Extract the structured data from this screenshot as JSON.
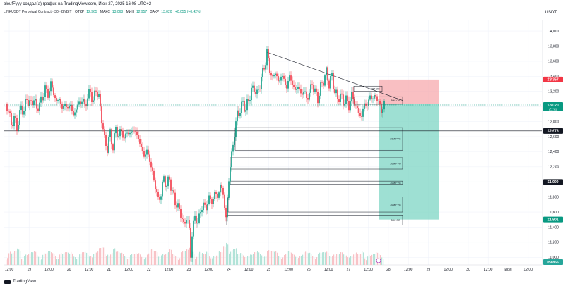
{
  "header": {
    "title": "bloufFyyy создал(а) график на TradingView.com, Июн 27, 2025 16:08 UTC+2"
  },
  "legend": {
    "symbol": "LINKUSDT Perpetual Contract · 30 · BYBIT",
    "open_label": "ОТКР",
    "open": "12,965",
    "high_label": "МАКС",
    "high": "13,068",
    "low_label": "МИН",
    "low": "12,957",
    "close_label": "ЗАКР",
    "close": "13,020",
    "change": "+0,055 (+0,42%)"
  },
  "currency": "USDT",
  "brand": {
    "name": "TradingView"
  },
  "colors": {
    "up": "#089981",
    "down": "#f23645",
    "grid": "#f0f3fa",
    "short_zone": "#f7a9ae",
    "long_zone": "#7ed6c4",
    "last_price": "#089981"
  },
  "chart_data": {
    "type": "candlestick",
    "y_axis": {
      "min": 10.9,
      "max": 14.15,
      "ticks": [
        "14,000",
        "13,800",
        "13,600",
        "13,400",
        "13,200",
        "13,000",
        "12,800",
        "12,600",
        "12,400",
        "12,200",
        "12,000",
        "11,800",
        "11,600",
        "11,400",
        "11,200",
        "11,000"
      ],
      "tick_values": [
        14.0,
        13.8,
        13.6,
        13.4,
        13.2,
        13.0,
        12.8,
        12.6,
        12.4,
        12.2,
        12.0,
        11.8,
        11.6,
        11.4,
        11.2,
        11.0
      ]
    },
    "x_axis": {
      "labels": [
        "12:00",
        "19",
        "12:00",
        "20",
        "12:00",
        "21",
        "12:00",
        "22",
        "12:00",
        "23",
        "12:00",
        "24",
        "12:00",
        "25",
        "12:00",
        "26",
        "12:00",
        "27",
        "12:00",
        "28",
        "12:00",
        "29",
        "12:00",
        "30",
        "12:00",
        "Июл",
        "12:00"
      ]
    },
    "price_series": [
      [
        0,
        13.03
      ],
      [
        4,
        12.95
      ],
      [
        8,
        12.76
      ],
      [
        12,
        12.85
      ],
      [
        16,
        12.72
      ],
      [
        22,
        12.98
      ],
      [
        26,
        12.95
      ],
      [
        30,
        13.1
      ],
      [
        36,
        13.02
      ],
      [
        40,
        13.12
      ],
      [
        44,
        12.95
      ],
      [
        48,
        13.05
      ],
      [
        52,
        13.1
      ],
      [
        56,
        13.25
      ],
      [
        60,
        13.15
      ],
      [
        64,
        13.3
      ],
      [
        68,
        13.18
      ],
      [
        72,
        13.05
      ],
      [
        76,
        13.12
      ],
      [
        80,
        12.95
      ],
      [
        84,
        13.05
      ],
      [
        88,
        12.95
      ],
      [
        92,
        13.05
      ],
      [
        96,
        12.85
      ],
      [
        100,
        13.0
      ],
      [
        104,
        13.02
      ],
      [
        108,
        13.1
      ],
      [
        112,
        13.0
      ],
      [
        116,
        13.12
      ],
      [
        120,
        13.2
      ],
      [
        124,
        13.05
      ],
      [
        128,
        13.25
      ],
      [
        132,
        13.1
      ],
      [
        136,
        12.85
      ],
      [
        140,
        12.55
      ],
      [
        144,
        12.45
      ],
      [
        148,
        12.65
      ],
      [
        152,
        12.45
      ],
      [
        156,
        12.72
      ],
      [
        160,
        12.6
      ],
      [
        164,
        12.7
      ],
      [
        168,
        12.55
      ],
      [
        172,
        12.68
      ],
      [
        176,
        12.62
      ],
      [
        180,
        12.7
      ],
      [
        184,
        12.65
      ],
      [
        188,
        12.58
      ],
      [
        192,
        12.45
      ],
      [
        196,
        12.35
      ],
      [
        200,
        12.4
      ],
      [
        204,
        12.3
      ],
      [
        208,
        12.1
      ],
      [
        212,
        11.95
      ],
      [
        216,
        11.75
      ],
      [
        220,
        11.85
      ],
      [
        224,
        12.05
      ],
      [
        228,
        11.95
      ],
      [
        232,
        12.05
      ],
      [
        236,
        11.85
      ],
      [
        240,
        11.75
      ],
      [
        244,
        11.65
      ],
      [
        248,
        11.6
      ],
      [
        252,
        11.4
      ],
      [
        256,
        11.55
      ],
      [
        260,
        11.35
      ],
      [
        262,
        11.05
      ],
      [
        264,
        11.3
      ],
      [
        268,
        11.55
      ],
      [
        272,
        11.45
      ],
      [
        276,
        11.62
      ],
      [
        280,
        11.7
      ],
      [
        284,
        11.65
      ],
      [
        288,
        11.8
      ],
      [
        292,
        11.72
      ],
      [
        296,
        11.85
      ],
      [
        300,
        11.8
      ],
      [
        304,
        11.95
      ],
      [
        308,
        11.85
      ],
      [
        312,
        11.5
      ],
      [
        316,
        12.05
      ],
      [
        320,
        12.35
      ],
      [
        324,
        12.65
      ],
      [
        328,
        12.9
      ],
      [
        332,
        12.95
      ],
      [
        336,
        13.05
      ],
      [
        340,
        12.95
      ],
      [
        344,
        13.1
      ],
      [
        348,
        13.2
      ],
      [
        352,
        13.25
      ],
      [
        356,
        13.15
      ],
      [
        360,
        13.3
      ],
      [
        364,
        13.45
      ],
      [
        368,
        13.6
      ],
      [
        370,
        13.72
      ],
      [
        374,
        13.5
      ],
      [
        378,
        13.35
      ],
      [
        382,
        13.48
      ],
      [
        386,
        13.3
      ],
      [
        390,
        13.42
      ],
      [
        394,
        13.35
      ],
      [
        398,
        13.25
      ],
      [
        402,
        13.4
      ],
      [
        406,
        13.3
      ],
      [
        410,
        13.2
      ],
      [
        414,
        13.28
      ],
      [
        418,
        13.15
      ],
      [
        422,
        13.22
      ],
      [
        426,
        13.1
      ],
      [
        430,
        13.18
      ],
      [
        434,
        13.3
      ],
      [
        438,
        13.2
      ],
      [
        442,
        13.1
      ],
      [
        446,
        13.25
      ],
      [
        450,
        13.35
      ],
      [
        454,
        13.45
      ],
      [
        458,
        13.3
      ],
      [
        462,
        13.4
      ],
      [
        466,
        13.2
      ],
      [
        470,
        13.1
      ],
      [
        474,
        13.15
      ],
      [
        478,
        13.05
      ],
      [
        482,
        13.1
      ],
      [
        486,
        13.0
      ],
      [
        490,
        13.15
      ],
      [
        494,
        13.05
      ],
      [
        498,
        12.95
      ],
      [
        502,
        12.9
      ],
      [
        504,
        12.85
      ],
      [
        508,
        13.05
      ],
      [
        512,
        13.0
      ],
      [
        516,
        13.15
      ],
      [
        520,
        13.1
      ],
      [
        524,
        13.15
      ],
      [
        528,
        13.05
      ],
      [
        532,
        12.95
      ],
      [
        536,
        13.02
      ]
    ],
    "volume_note": "volume histogram",
    "annotations": [
      {
        "label": "30M OB",
        "x1": 493,
        "x2": 533,
        "y_top": 13.27,
        "y_bot": 13.2
      },
      {
        "label": "30M OB",
        "x1": 493,
        "x2": 562,
        "y_top": 13.13,
        "y_bot": 13.03
      },
      {
        "label": "30M FVG",
        "x1": 325,
        "x2": 562,
        "y_top": 12.72,
        "y_bot": 12.42
      },
      {
        "label": "30M FVG",
        "x1": 318,
        "x2": 562,
        "y_top": 12.32,
        "y_bot": 12.17
      },
      {
        "label": "30M FVG",
        "x1": 318,
        "x2": 562,
        "y_top": 12.01,
        "y_bot": 11.97
      },
      {
        "label": "30M FVG",
        "x1": 315,
        "x2": 562,
        "y_top": 11.8,
        "y_bot": 11.6
      },
      {
        "label": "30M OB",
        "x1": 313,
        "x2": 562,
        "y_top": 11.56,
        "y_bot": 11.43
      }
    ],
    "trendline": {
      "from": [
        370,
        13.72
      ],
      "to": [
        562,
        13.08
      ]
    },
    "levels": [
      {
        "value": 12.676,
        "label": "12,676"
      },
      {
        "value": 11.999,
        "label": "11,999"
      }
    ],
    "position": {
      "entry": 13.03,
      "stop": 13.357,
      "target": 11.501,
      "stop_label": "13,357",
      "target_label": "11,501"
    },
    "last_price": {
      "value": 13.02,
      "label": "13,020",
      "timer": "21:52"
    },
    "volume_label": "69,865"
  }
}
